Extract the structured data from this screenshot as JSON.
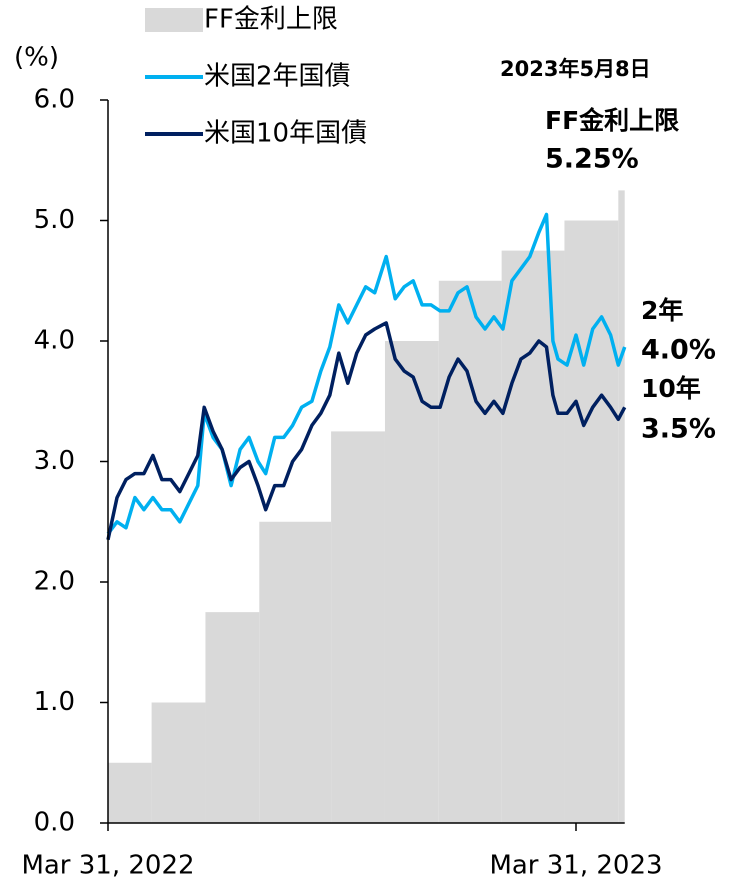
{
  "chart_data": {
    "type": "line",
    "y_label": "(%)",
    "xlim": [
      "2022-03-31",
      "2023-05-08"
    ],
    "xticks": [
      {
        "value": "2022-03-31",
        "label": "Mar 31, 2022"
      },
      {
        "value": "2023-03-31",
        "label": "Mar 31, 2023"
      }
    ],
    "ylim": [
      0,
      6
    ],
    "yticks": [
      {
        "value": 0,
        "label": "0.0"
      },
      {
        "value": 1,
        "label": "1.0"
      },
      {
        "value": 2,
        "label": "2.0"
      },
      {
        "value": 3,
        "label": "3.0"
      },
      {
        "value": 4,
        "label": "4.0"
      },
      {
        "value": 5,
        "label": "5.0"
      },
      {
        "value": 6,
        "label": "6.0"
      }
    ],
    "legend": "top-left",
    "series": [
      {
        "name": "FF金利上限",
        "kind": "step-area",
        "color": "#d9d9d9",
        "x": [
          "2022-03-31",
          "2022-05-04",
          "2022-06-15",
          "2022-07-27",
          "2022-09-21",
          "2022-11-02",
          "2022-12-14",
          "2023-02-01",
          "2023-03-22",
          "2023-05-03"
        ],
        "values": [
          0.5,
          1.0,
          1.75,
          2.5,
          3.25,
          4.0,
          4.5,
          4.75,
          5.0,
          5.25
        ]
      },
      {
        "name": "米国2年国債",
        "kind": "line",
        "color": "#00b0f0",
        "x": [
          "2022-03-31",
          "2022-04-07",
          "2022-04-14",
          "2022-04-21",
          "2022-04-28",
          "2022-05-05",
          "2022-05-12",
          "2022-05-19",
          "2022-05-26",
          "2022-06-02",
          "2022-06-09",
          "2022-06-14",
          "2022-06-21",
          "2022-06-28",
          "2022-07-05",
          "2022-07-12",
          "2022-07-19",
          "2022-07-26",
          "2022-08-01",
          "2022-08-08",
          "2022-08-15",
          "2022-08-22",
          "2022-08-29",
          "2022-09-06",
          "2022-09-13",
          "2022-09-20",
          "2022-09-27",
          "2022-10-04",
          "2022-10-11",
          "2022-10-18",
          "2022-10-25",
          "2022-11-03",
          "2022-11-10",
          "2022-11-17",
          "2022-11-24",
          "2022-12-01",
          "2022-12-08",
          "2022-12-15",
          "2022-12-22",
          "2022-12-29",
          "2023-01-05",
          "2023-01-12",
          "2023-01-19",
          "2023-01-26",
          "2023-02-02",
          "2023-02-09",
          "2023-02-16",
          "2023-02-23",
          "2023-03-02",
          "2023-03-08",
          "2023-03-13",
          "2023-03-17",
          "2023-03-24",
          "2023-03-31",
          "2023-04-06",
          "2023-04-13",
          "2023-04-20",
          "2023-04-27",
          "2023-05-03",
          "2023-05-08"
        ],
        "values": [
          2.4,
          2.5,
          2.45,
          2.7,
          2.6,
          2.7,
          2.6,
          2.6,
          2.5,
          2.65,
          2.8,
          3.4,
          3.2,
          3.1,
          2.8,
          3.1,
          3.2,
          3.0,
          2.9,
          3.2,
          3.2,
          3.3,
          3.45,
          3.5,
          3.75,
          3.95,
          4.3,
          4.15,
          4.3,
          4.45,
          4.4,
          4.7,
          4.35,
          4.45,
          4.5,
          4.3,
          4.3,
          4.25,
          4.25,
          4.4,
          4.45,
          4.2,
          4.1,
          4.2,
          4.1,
          4.5,
          4.6,
          4.7,
          4.9,
          5.05,
          4.0,
          3.85,
          3.8,
          4.05,
          3.8,
          4.1,
          4.2,
          4.05,
          3.8,
          3.95
        ]
      },
      {
        "name": "米国10年国債",
        "kind": "line",
        "color": "#002060",
        "x": [
          "2022-03-31",
          "2022-04-07",
          "2022-04-14",
          "2022-04-21",
          "2022-04-28",
          "2022-05-05",
          "2022-05-12",
          "2022-05-19",
          "2022-05-26",
          "2022-06-02",
          "2022-06-09",
          "2022-06-14",
          "2022-06-21",
          "2022-06-28",
          "2022-07-05",
          "2022-07-12",
          "2022-07-19",
          "2022-07-26",
          "2022-08-01",
          "2022-08-08",
          "2022-08-15",
          "2022-08-22",
          "2022-08-29",
          "2022-09-06",
          "2022-09-13",
          "2022-09-20",
          "2022-09-27",
          "2022-10-04",
          "2022-10-11",
          "2022-10-18",
          "2022-10-25",
          "2022-11-03",
          "2022-11-10",
          "2022-11-17",
          "2022-11-24",
          "2022-12-01",
          "2022-12-08",
          "2022-12-15",
          "2022-12-22",
          "2022-12-29",
          "2023-01-05",
          "2023-01-12",
          "2023-01-19",
          "2023-01-26",
          "2023-02-02",
          "2023-02-09",
          "2023-02-16",
          "2023-02-23",
          "2023-03-02",
          "2023-03-08",
          "2023-03-13",
          "2023-03-17",
          "2023-03-24",
          "2023-03-31",
          "2023-04-06",
          "2023-04-13",
          "2023-04-20",
          "2023-04-27",
          "2023-05-03",
          "2023-05-08"
        ],
        "values": [
          2.35,
          2.7,
          2.85,
          2.9,
          2.9,
          3.05,
          2.85,
          2.85,
          2.75,
          2.9,
          3.05,
          3.45,
          3.25,
          3.1,
          2.85,
          2.95,
          3.0,
          2.8,
          2.6,
          2.8,
          2.8,
          3.0,
          3.1,
          3.3,
          3.4,
          3.55,
          3.9,
          3.65,
          3.9,
          4.05,
          4.1,
          4.15,
          3.85,
          3.75,
          3.7,
          3.5,
          3.45,
          3.45,
          3.7,
          3.85,
          3.75,
          3.5,
          3.4,
          3.5,
          3.4,
          3.65,
          3.85,
          3.9,
          4.0,
          3.95,
          3.55,
          3.4,
          3.4,
          3.5,
          3.3,
          3.45,
          3.55,
          3.45,
          3.35,
          3.45
        ]
      }
    ],
    "annotations": [
      {
        "text": "2023年5月8日",
        "color": "#000000"
      },
      {
        "text": "FF金利上限",
        "color": "#8c8c8c"
      },
      {
        "text": "5.25%",
        "color": "#8c8c8c"
      },
      {
        "text": "2年",
        "color": "#00b0f0"
      },
      {
        "text": "4.0%",
        "color": "#00b0f0"
      },
      {
        "text": "10年",
        "color": "#002060"
      },
      {
        "text": "3.5%",
        "color": "#002060"
      }
    ]
  }
}
